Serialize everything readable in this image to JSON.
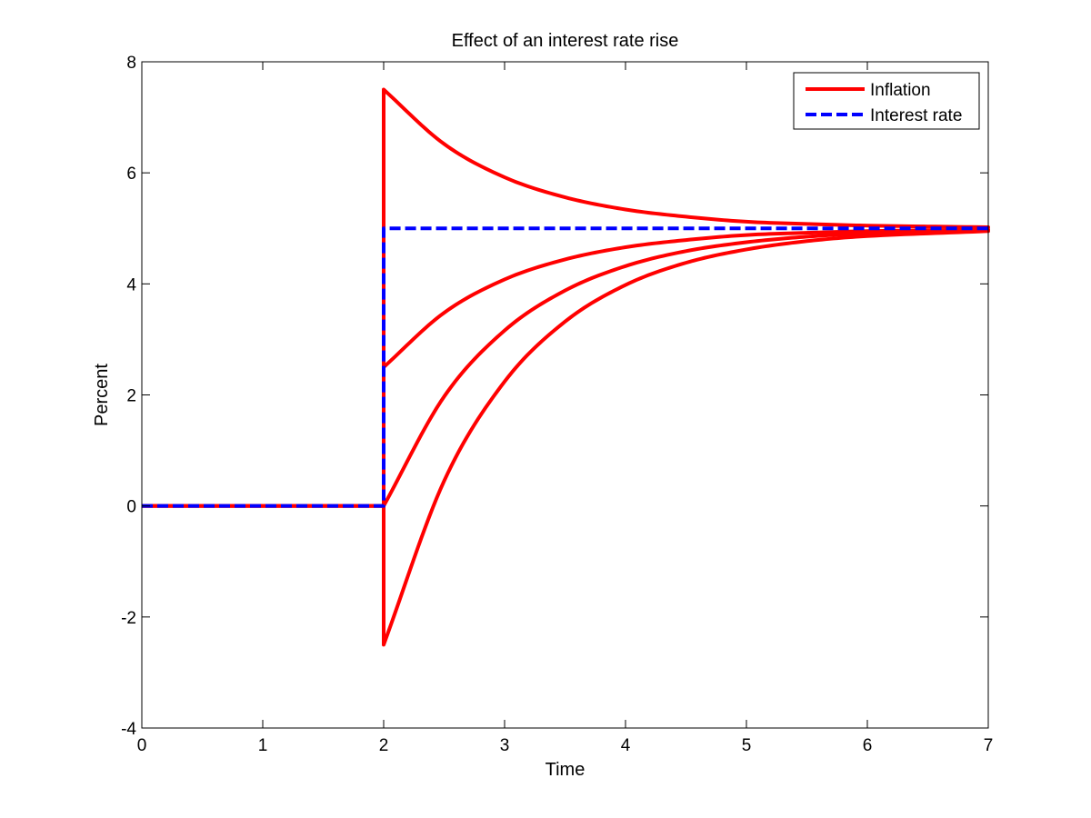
{
  "chart_data": {
    "type": "line",
    "title": "Effect of an interest rate rise",
    "xlabel": "Time",
    "ylabel": "Percent",
    "xlim": [
      0,
      7
    ],
    "ylim": [
      -4,
      8
    ],
    "xticks": [
      0,
      1,
      2,
      3,
      4,
      5,
      6,
      7
    ],
    "yticks": [
      -4,
      -2,
      0,
      2,
      4,
      6,
      8
    ],
    "grid": false,
    "legend_position": "top-right",
    "legend": [
      {
        "label": "Inflation",
        "color": "#ff0000",
        "style": "solid"
      },
      {
        "label": "Interest rate",
        "color": "#0000ff",
        "style": "dashed"
      }
    ],
    "series": [
      {
        "name": "Inflation",
        "legend_label": "Inflation",
        "color": "#ff0000",
        "style": "solid",
        "x": [
          0,
          2,
          2,
          2.5,
          3,
          3.5,
          4,
          4.5,
          5,
          5.5,
          6,
          7
        ],
        "values": [
          0,
          0,
          7.5,
          6.52,
          5.92,
          5.56,
          5.34,
          5.21,
          5.12,
          5.08,
          5.05,
          5.02
        ]
      },
      {
        "name": "Inflation",
        "legend_label": "",
        "color": "#ff0000",
        "style": "solid",
        "x": [
          0,
          2,
          2,
          2.5,
          3,
          3.5,
          4,
          4.5,
          5,
          5.5,
          6,
          7
        ],
        "values": [
          0,
          0,
          2.5,
          3.48,
          4.08,
          4.44,
          4.66,
          4.79,
          4.88,
          4.92,
          4.95,
          4.98
        ]
      },
      {
        "name": "Inflation",
        "legend_label": "",
        "color": "#ff0000",
        "style": "solid",
        "x": [
          0,
          2,
          2,
          2.5,
          3,
          3.5,
          4,
          4.5,
          5,
          5.5,
          6,
          7
        ],
        "values": [
          0,
          0,
          0,
          1.97,
          3.16,
          3.88,
          4.32,
          4.59,
          4.75,
          4.85,
          4.91,
          4.97
        ]
      },
      {
        "name": "Inflation",
        "legend_label": "",
        "color": "#ff0000",
        "style": "solid",
        "x": [
          0,
          2,
          2,
          2.5,
          3,
          3.5,
          4,
          4.5,
          5,
          5.5,
          6,
          7
        ],
        "values": [
          0,
          0,
          -2.5,
          0.45,
          2.24,
          3.32,
          3.98,
          4.38,
          4.62,
          4.77,
          4.86,
          4.95
        ]
      },
      {
        "name": "Interest rate",
        "legend_label": "Interest rate",
        "color": "#0000ff",
        "style": "dashed",
        "x": [
          0,
          2,
          2,
          7
        ],
        "values": [
          0,
          0,
          5,
          5
        ]
      }
    ]
  }
}
